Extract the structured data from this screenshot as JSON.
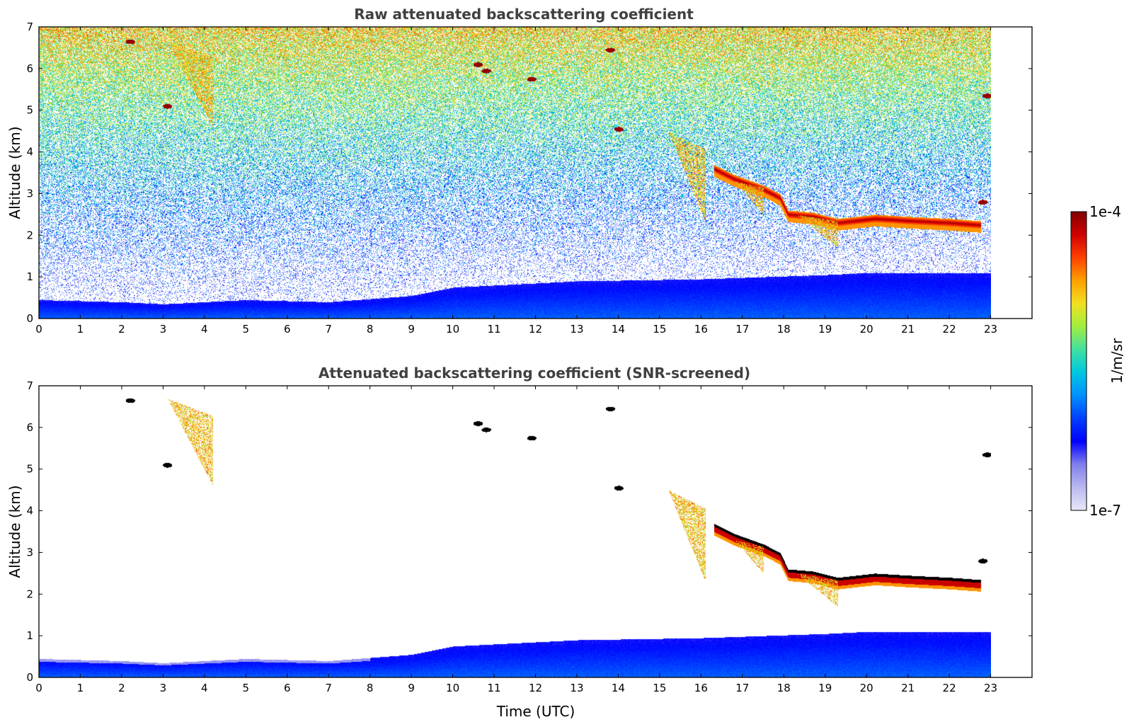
{
  "chart_data": [
    {
      "type": "heatmap",
      "title": "Raw attenuated backscattering coefficient",
      "xlabel": "",
      "ylabel": "Altitude (km)",
      "xlim": [
        0,
        24
      ],
      "ylim": [
        0,
        7
      ],
      "xticks": [
        "0",
        "1",
        "2",
        "3",
        "4",
        "5",
        "6",
        "7",
        "8",
        "9",
        "10",
        "11",
        "12",
        "13",
        "14",
        "15",
        "16",
        "17",
        "18",
        "19",
        "20",
        "21",
        "22",
        "23"
      ],
      "yticks": [
        "0",
        "1",
        "2",
        "3",
        "4",
        "5",
        "6",
        "7"
      ],
      "data_end_time": 23,
      "screened": false,
      "features": {
        "boundary_layer_top": [
          [
            0,
            0.45
          ],
          [
            2,
            0.4
          ],
          [
            3,
            0.35
          ],
          [
            5,
            0.45
          ],
          [
            7,
            0.4
          ],
          [
            9,
            0.55
          ],
          [
            10,
            0.75
          ],
          [
            13,
            0.9
          ],
          [
            16,
            0.95
          ],
          [
            19,
            1.05
          ],
          [
            20,
            1.1
          ],
          [
            23,
            1.1
          ]
        ],
        "cloud_layer": [
          [
            16.3,
            3.6
          ],
          [
            16.8,
            3.35
          ],
          [
            17.5,
            3.1
          ],
          [
            17.9,
            2.9
          ],
          [
            18.1,
            2.5
          ],
          [
            18.7,
            2.45
          ],
          [
            19.3,
            2.3
          ],
          [
            20.2,
            2.4
          ],
          [
            21,
            2.35
          ],
          [
            22,
            2.3
          ],
          [
            22.7,
            2.25
          ]
        ],
        "precip_streaks": [
          [
            15.2,
            16.1,
            4.5,
            2.3
          ],
          [
            18.3,
            19.3,
            2.5,
            1.7
          ],
          [
            3.1,
            4.2,
            6.7,
            4.6
          ],
          [
            16.8,
            17.5,
            3.3,
            2.5
          ]
        ],
        "dense_spots": [
          [
            2.2,
            6.65
          ],
          [
            10.6,
            6.1
          ],
          [
            10.8,
            5.95
          ],
          [
            11.9,
            5.75
          ],
          [
            14.0,
            4.55
          ],
          [
            13.8,
            6.45
          ],
          [
            22.9,
            5.35
          ],
          [
            22.8,
            2.8
          ],
          [
            3.1,
            5.1
          ]
        ]
      }
    },
    {
      "type": "heatmap",
      "title": "Attenuated backscattering coefficient (SNR-screened)",
      "xlabel": "Time (UTC)",
      "ylabel": "Altitude (km)",
      "xlim": [
        0,
        24
      ],
      "ylim": [
        0,
        7
      ],
      "xticks": [
        "0",
        "1",
        "2",
        "3",
        "4",
        "5",
        "6",
        "7",
        "8",
        "9",
        "10",
        "11",
        "12",
        "13",
        "14",
        "15",
        "16",
        "17",
        "18",
        "19",
        "20",
        "21",
        "22",
        "23"
      ],
      "yticks": [
        "0",
        "1",
        "2",
        "3",
        "4",
        "5",
        "6",
        "7"
      ],
      "data_end_time": 23,
      "screened": true
    }
  ],
  "colorbar": {
    "label": "1/m/sr",
    "min_label": "1e-7",
    "max_label": "1e-4",
    "scale": "log",
    "colormap": [
      "#e8e8f8",
      "#b8b8f0",
      "#8080ec",
      "#0000ff",
      "#0040ff",
      "#0090ff",
      "#00c8e0",
      "#40e0a0",
      "#a0ee40",
      "#f0e020",
      "#ffa000",
      "#ff4000",
      "#d00000",
      "#800000"
    ]
  }
}
